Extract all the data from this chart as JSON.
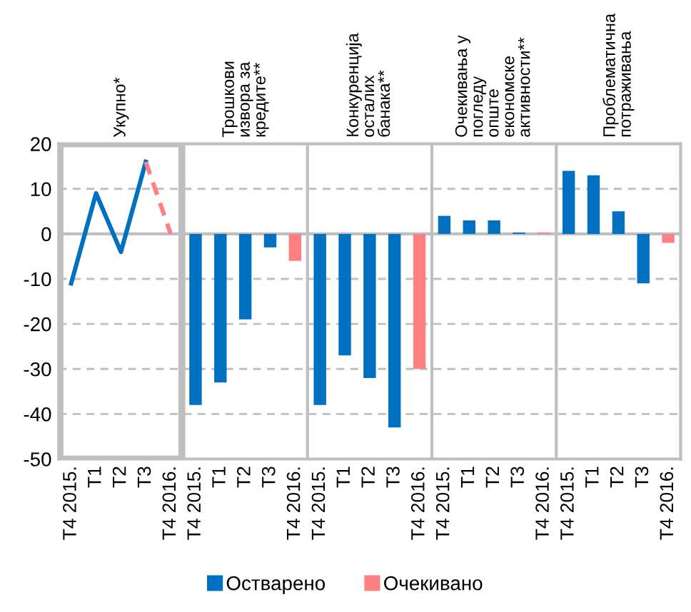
{
  "chart_data": {
    "type": "bar",
    "categories": [
      "T4 2015.",
      "T1",
      "T2",
      "T3",
      "T4 2016.",
      "T4 2015.",
      "T1",
      "T2",
      "T3",
      "T4 2016.",
      "T4 2015.",
      "T1",
      "T2",
      "T3",
      "T4 2016.",
      "T4 2015.",
      "T1",
      "T2",
      "T3",
      "T4 2016.",
      "T4 2015.",
      "T1",
      "T2",
      "T3",
      "T4 2016."
    ],
    "series": [
      {
        "name": "Остварено",
        "color": "#0070c0",
        "values": [
          null,
          null,
          null,
          null,
          null,
          -38,
          -33,
          -19,
          -3,
          null,
          -38,
          -27,
          -32,
          -43,
          null,
          4,
          3,
          3,
          0.3,
          null,
          14,
          13,
          5,
          -11,
          null
        ]
      },
      {
        "name": "Очекивано",
        "color": "#ff8080",
        "values": [
          null,
          null,
          null,
          null,
          null,
          null,
          null,
          null,
          null,
          -6,
          null,
          null,
          null,
          null,
          -30,
          null,
          null,
          null,
          null,
          0.3,
          null,
          null,
          null,
          null,
          -2
        ]
      },
      {
        "type": "line",
        "color": "#0070c0",
        "line_style": "solid",
        "values": [
          -11,
          9,
          -4,
          16,
          null,
          null,
          null,
          null,
          null,
          null,
          null,
          null,
          null,
          null,
          null,
          null,
          null,
          null,
          null,
          null,
          null,
          null,
          null,
          null,
          null
        ]
      },
      {
        "type": "line",
        "color": "#ff8080",
        "line_style": "dashed",
        "values": [
          null,
          null,
          null,
          16,
          0,
          null,
          null,
          null,
          null,
          null,
          null,
          null,
          null,
          null,
          null,
          null,
          null,
          null,
          null,
          null,
          null,
          null,
          null,
          null,
          null
        ]
      }
    ],
    "annotations": [
      "Укупно*",
      "Трошкови\nизвора за\nкредите**",
      "Конкуренција\nосталих\nбанака**",
      "Очекивања у\nпогледу\nопште\nекономске\nактивности**",
      "Проблематична\nпотраживања"
    ],
    "ylim": [
      -50,
      20
    ],
    "yticks": [
      -50,
      -40,
      -30,
      -20,
      -10,
      0,
      10,
      20
    ],
    "grid": "y",
    "legend": "bottom"
  }
}
